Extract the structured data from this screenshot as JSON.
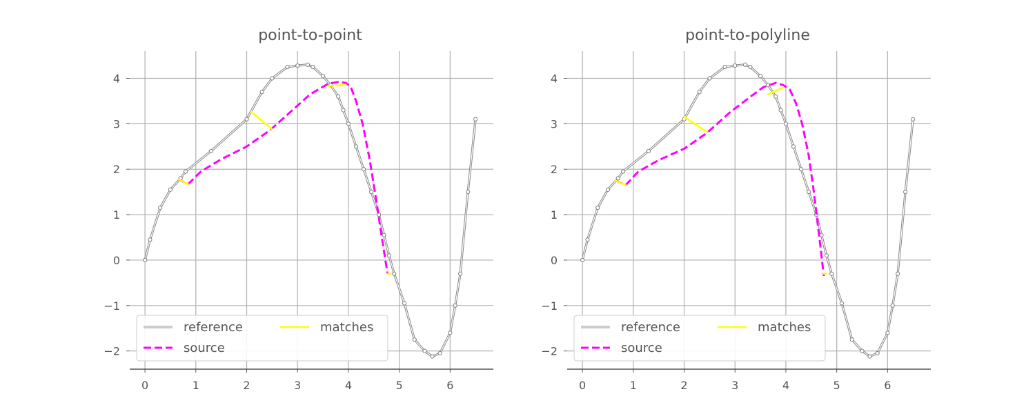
{
  "chart_data": [
    {
      "type": "line",
      "title": "point-to-point",
      "xlabel": "",
      "ylabel": "",
      "xlim": [
        -0.3,
        6.85
      ],
      "ylim": [
        -2.4,
        4.6
      ],
      "xticks": [
        0,
        1,
        2,
        3,
        4,
        5,
        6
      ],
      "yticks": [
        -2,
        -1,
        0,
        1,
        2,
        3,
        4
      ],
      "xtick_labels": [
        "0",
        "1",
        "2",
        "3",
        "4",
        "5",
        "6"
      ],
      "ytick_labels": [
        "−2",
        "−1",
        "0",
        "1",
        "2",
        "3",
        "4"
      ],
      "grid": true,
      "legend": {
        "position": "lower-left",
        "entries": [
          {
            "label": "reference",
            "style": "thin-gray"
          },
          {
            "label": "source",
            "style": "magenta-dashed"
          },
          {
            "label": "matches",
            "style": "yellow-solid"
          }
        ]
      },
      "series": [
        {
          "name": "reference",
          "color": "#7f7f7f",
          "x": [
            0,
            0.1,
            0.3,
            0.5,
            0.7,
            0.8,
            1.3,
            2.0,
            2.3,
            2.5,
            2.8,
            3.0,
            3.2,
            3.3,
            3.5,
            3.65,
            3.8,
            3.9,
            4.0,
            4.15,
            4.3,
            4.45,
            4.6,
            4.7,
            4.8,
            4.9,
            5.1,
            5.3,
            5.5,
            5.65,
            5.8,
            6.0,
            6.1,
            6.2,
            6.35,
            6.5
          ],
          "y": [
            0,
            0.45,
            1.15,
            1.55,
            1.8,
            1.95,
            2.4,
            3.1,
            3.7,
            4.0,
            4.25,
            4.28,
            4.3,
            4.25,
            4.05,
            3.85,
            3.6,
            3.3,
            3.0,
            2.5,
            2.0,
            1.5,
            1.0,
            0.55,
            0.1,
            -0.3,
            -0.95,
            -1.75,
            -2.0,
            -2.12,
            -2.05,
            -1.6,
            -1.0,
            -0.3,
            1.5,
            3.1
          ]
        },
        {
          "name": "source",
          "color": "#ff00ff",
          "x": [
            0.65,
            0.85,
            1.1,
            1.5,
            2.0,
            2.45,
            2.9,
            3.25,
            3.6,
            3.8,
            3.95,
            4.05,
            4.15,
            4.28,
            4.42,
            4.55,
            4.65,
            4.72,
            4.77
          ],
          "y": [
            1.78,
            1.67,
            1.95,
            2.22,
            2.5,
            2.85,
            3.3,
            3.65,
            3.88,
            3.92,
            3.9,
            3.8,
            3.5,
            3.0,
            2.2,
            1.3,
            0.55,
            0.05,
            -0.3
          ]
        }
      ],
      "matches": [
        {
          "from": [
            0.65,
            1.78
          ],
          "to": [
            0.85,
            1.67
          ]
        },
        {
          "from": [
            2.1,
            3.25
          ],
          "to": [
            2.5,
            2.88
          ]
        },
        {
          "from": [
            3.6,
            3.83
          ],
          "to": [
            3.95,
            3.86
          ]
        },
        {
          "from": [
            4.77,
            -0.3
          ],
          "to": [
            4.83,
            -0.3
          ]
        }
      ]
    },
    {
      "type": "line",
      "title": "point-to-polyline",
      "xlabel": "",
      "ylabel": "",
      "xlim": [
        -0.3,
        6.85
      ],
      "ylim": [
        -2.4,
        4.6
      ],
      "xticks": [
        0,
        1,
        2,
        3,
        4,
        5,
        6
      ],
      "yticks": [
        -2,
        -1,
        0,
        1,
        2,
        3,
        4
      ],
      "xtick_labels": [
        "0",
        "1",
        "2",
        "3",
        "4",
        "5",
        "6"
      ],
      "ytick_labels": [
        "−2",
        "−1",
        "0",
        "1",
        "2",
        "3",
        "4"
      ],
      "grid": true,
      "legend": {
        "position": "lower-left",
        "entries": [
          {
            "label": "reference",
            "style": "thin-gray"
          },
          {
            "label": "source",
            "style": "magenta-dashed"
          },
          {
            "label": "matches",
            "style": "yellow-solid"
          }
        ]
      },
      "series": [
        {
          "name": "reference",
          "color": "#7f7f7f",
          "x": [
            0,
            0.1,
            0.3,
            0.5,
            0.7,
            0.8,
            1.3,
            2.0,
            2.3,
            2.5,
            2.8,
            3.0,
            3.2,
            3.3,
            3.5,
            3.65,
            3.8,
            3.9,
            4.0,
            4.15,
            4.3,
            4.45,
            4.6,
            4.7,
            4.8,
            4.9,
            5.1,
            5.3,
            5.5,
            5.65,
            5.8,
            6.0,
            6.1,
            6.2,
            6.35,
            6.5
          ],
          "y": [
            0,
            0.45,
            1.15,
            1.55,
            1.8,
            1.95,
            2.4,
            3.1,
            3.7,
            4.0,
            4.25,
            4.28,
            4.3,
            4.25,
            4.05,
            3.85,
            3.6,
            3.3,
            3.0,
            2.5,
            2.0,
            1.5,
            1.0,
            0.55,
            0.1,
            -0.3,
            -0.95,
            -1.75,
            -2.0,
            -2.12,
            -2.05,
            -1.6,
            -1.0,
            -0.3,
            1.5,
            3.1
          ]
        },
        {
          "name": "source",
          "color": "#ff00ff",
          "x": [
            0.65,
            0.85,
            1.1,
            1.5,
            2.0,
            2.45,
            2.9,
            3.25,
            3.55,
            3.8,
            3.95,
            4.08,
            4.2,
            4.32,
            4.45,
            4.55,
            4.62,
            4.68,
            4.72,
            4.75
          ],
          "y": [
            1.75,
            1.65,
            1.95,
            2.2,
            2.45,
            2.8,
            3.25,
            3.55,
            3.8,
            3.9,
            3.85,
            3.75,
            3.45,
            3.0,
            2.3,
            1.5,
            0.85,
            0.3,
            -0.1,
            -0.35
          ]
        }
      ],
      "matches": [
        {
          "from": [
            0.65,
            1.75
          ],
          "to": [
            0.85,
            1.65
          ]
        },
        {
          "from": [
            2.0,
            3.15
          ],
          "to": [
            2.45,
            2.82
          ]
        },
        {
          "from": [
            3.65,
            3.65
          ],
          "to": [
            3.95,
            3.8
          ]
        },
        {
          "from": [
            4.75,
            -0.3
          ],
          "to": [
            4.8,
            -0.3
          ]
        }
      ]
    }
  ]
}
